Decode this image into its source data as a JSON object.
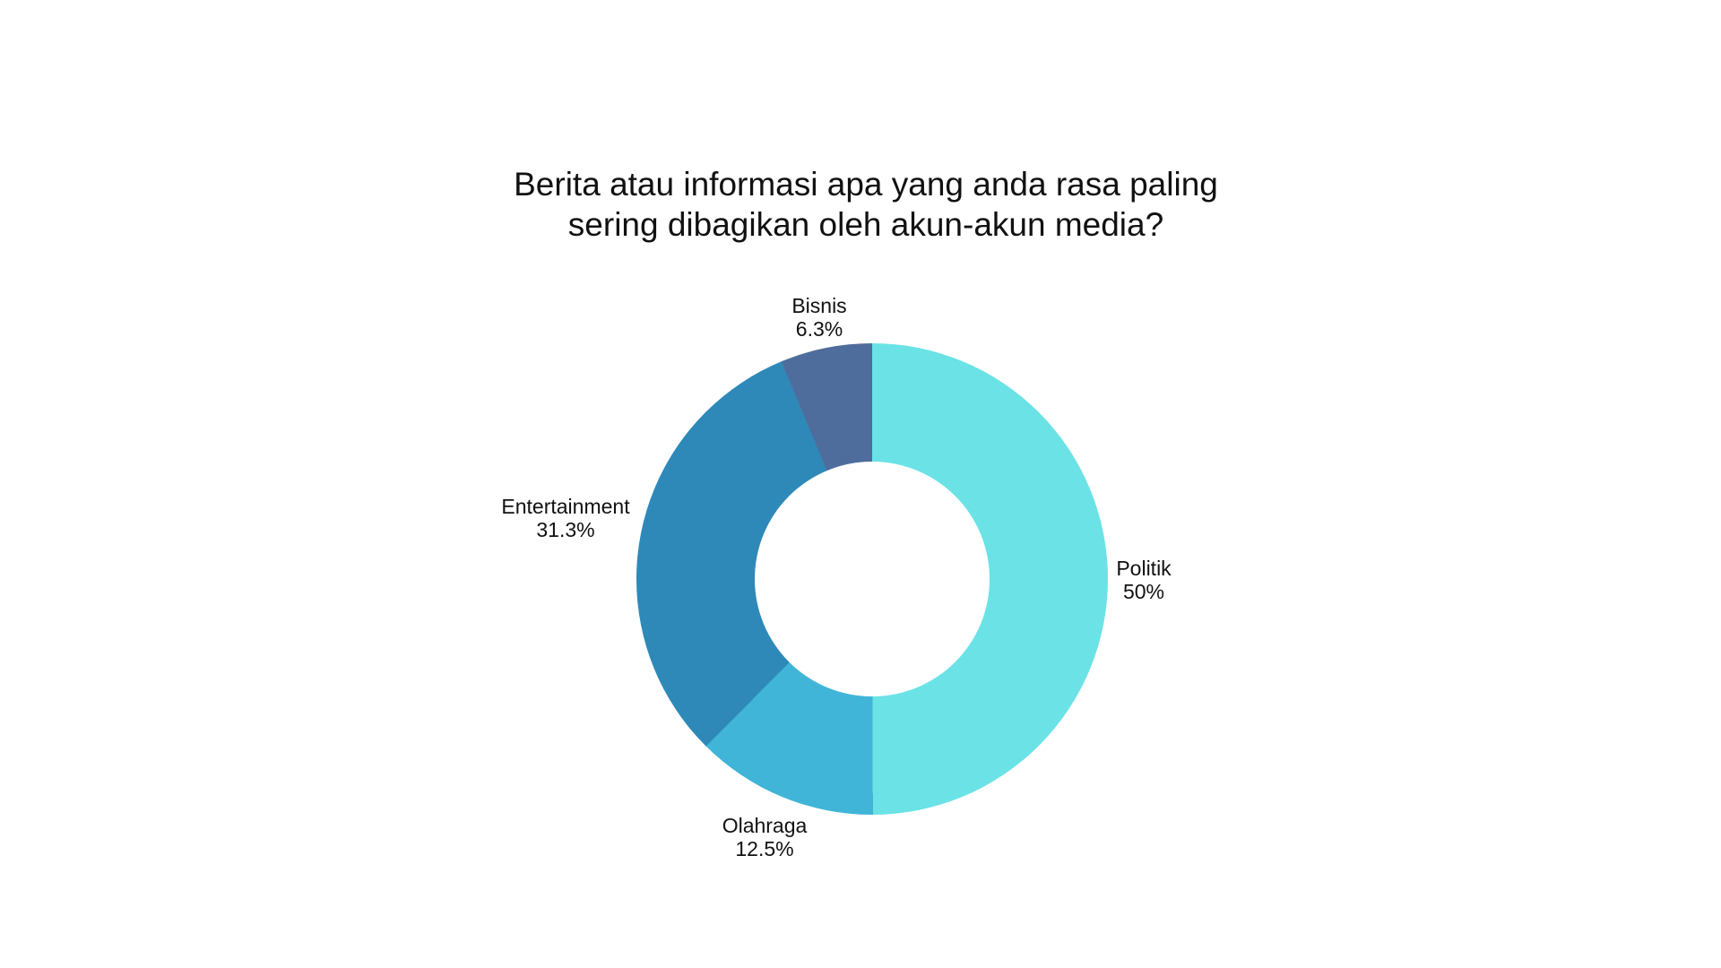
{
  "page": {
    "background": "#FFFFFF",
    "text_color": "#111111"
  },
  "chart_data": {
    "type": "pie",
    "subtype": "donut",
    "title": "Berita atau informasi apa yang anda rasa paling sering dibagikan oleh akun-akun media?",
    "title_lines": [
      "Berita atau informasi apa yang anda rasa paling",
      "sering dibagikan oleh akun-akun media?"
    ],
    "segments": [
      {
        "label": "Politik",
        "value": 50,
        "value_label": "50%",
        "color": "#6BE2E6"
      },
      {
        "label": "Olahraga",
        "value": 12.5,
        "value_label": "12.5%",
        "color": "#40B5D8"
      },
      {
        "label": "Entertainment",
        "value": 31.3,
        "value_label": "31.3%",
        "color": "#2E89B9"
      },
      {
        "label": "Bisnis",
        "value": 6.3,
        "value_label": "6.3%",
        "color": "#4F6D9C"
      }
    ],
    "start_angle_deg": 0,
    "direction": "clockwise",
    "inner_radius_ratio": 0.5,
    "legend": "none",
    "labels_position": "outside"
  }
}
